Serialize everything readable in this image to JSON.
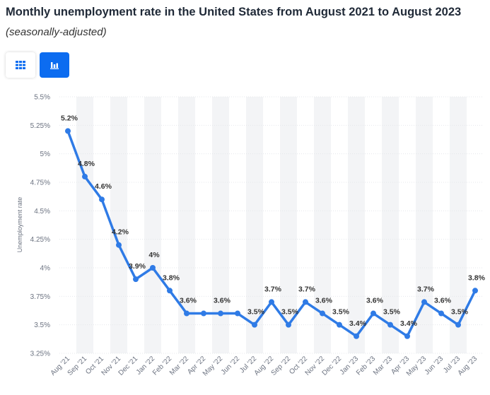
{
  "header": {
    "title": "Monthly unemployment rate in the United States from August 2021 to August 2023",
    "subtitle": "(seasonally-adjusted)"
  },
  "toolbar": {
    "table_view_icon": "table-grid-icon",
    "chart_view_icon": "bar-chart-icon"
  },
  "colors": {
    "series": "#2f7be6",
    "accent": "#0c6cf0",
    "band": "#f3f4f6",
    "grid": "#e5e7eb",
    "text": "#333333",
    "muted": "#6b7280"
  },
  "chart_data": {
    "type": "line",
    "title": "Monthly unemployment rate in the United States from August 2021 to August 2023",
    "subtitle": "(seasonally-adjusted)",
    "xlabel": "",
    "ylabel": "Unemployment rate",
    "ylim": [
      3.25,
      5.5
    ],
    "yticks": [
      3.25,
      3.5,
      3.75,
      4,
      4.25,
      4.5,
      4.75,
      5,
      5.25,
      5.5
    ],
    "ytick_labels": [
      "3.25%",
      "3.5%",
      "3.75%",
      "4%",
      "4.25%",
      "4.5%",
      "4.75%",
      "5%",
      "5.25%",
      "5.5%"
    ],
    "grid": true,
    "categories": [
      "Aug '21",
      "Sep '21",
      "Oct '21",
      "Nov '21",
      "Dec '21",
      "Jan '22",
      "Feb '22",
      "Mar '22",
      "Apr '22",
      "May '22",
      "Jun '22",
      "Jul '22",
      "Aug '22",
      "Sep '22",
      "Oct '22",
      "Nov '22",
      "Dec '22",
      "Jan '23",
      "Feb '23",
      "Mar '23",
      "Apr '23",
      "May '23",
      "Jun '23",
      "Jul '23",
      "Aug '23"
    ],
    "series": [
      {
        "name": "Unemployment rate",
        "values": [
          5.2,
          4.8,
          4.6,
          4.2,
          3.9,
          4.0,
          3.8,
          3.6,
          3.6,
          3.6,
          3.6,
          3.5,
          3.7,
          3.5,
          3.7,
          3.6,
          3.5,
          3.4,
          3.6,
          3.5,
          3.4,
          3.7,
          3.6,
          3.5,
          3.8
        ],
        "labels": [
          "5.2%",
          "4.8%",
          "4.6%",
          "4.2%",
          "3.9%",
          "4%",
          "3.8%",
          "3.6%",
          "",
          "3.6%",
          "",
          "3.5%",
          "3.7%",
          "3.5%",
          "3.7%",
          "3.6%",
          "3.5%",
          "3.4%",
          "3.6%",
          "3.5%",
          "3.4%",
          "3.7%",
          "3.6%",
          "3.5%",
          "3.8%"
        ]
      }
    ]
  }
}
